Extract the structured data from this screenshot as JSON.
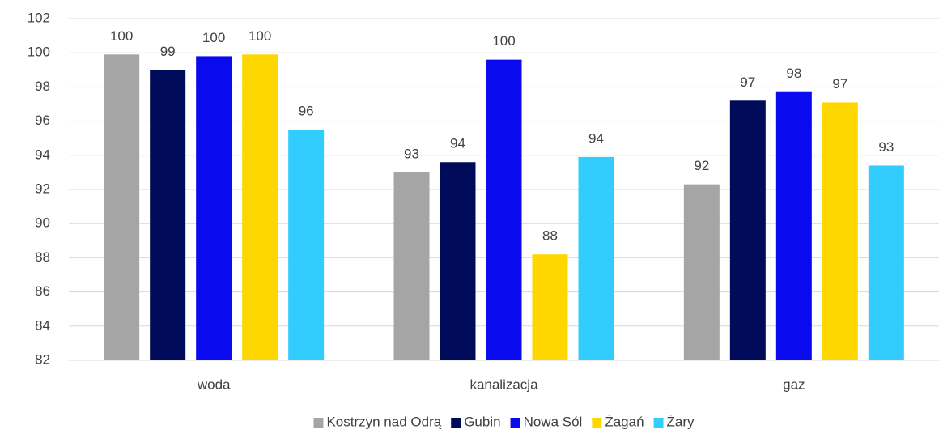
{
  "chart_data": {
    "type": "bar",
    "categories": [
      "woda",
      "kanalizacja",
      "gaz"
    ],
    "series": [
      {
        "name": "Kostrzyn nad Odrą",
        "color": "#a5a5a5",
        "values": [
          99.9,
          93.0,
          92.3
        ],
        "value_labels": [
          "100",
          "93",
          "92"
        ]
      },
      {
        "name": "Gubin",
        "color": "#000c5a",
        "values": [
          99.0,
          93.6,
          97.2
        ],
        "value_labels": [
          "99",
          "94",
          "97"
        ]
      },
      {
        "name": "Nowa Sól",
        "color": "#0a0aee",
        "values": [
          99.8,
          99.6,
          97.7
        ],
        "value_labels": [
          "100",
          "100",
          "98"
        ]
      },
      {
        "name": "Żagań",
        "color": "#ffd700",
        "values": [
          99.9,
          88.2,
          97.1
        ],
        "value_labels": [
          "100",
          "88",
          "97"
        ]
      },
      {
        "name": "Żary",
        "color": "#33ccff",
        "values": [
          95.5,
          93.9,
          93.4
        ],
        "value_labels": [
          "96",
          "94",
          "93"
        ]
      }
    ],
    "ylim": [
      82,
      102
    ],
    "yticks": [
      82,
      84,
      86,
      88,
      90,
      92,
      94,
      96,
      98,
      100,
      102
    ],
    "grid": true,
    "legend": "bottom"
  }
}
